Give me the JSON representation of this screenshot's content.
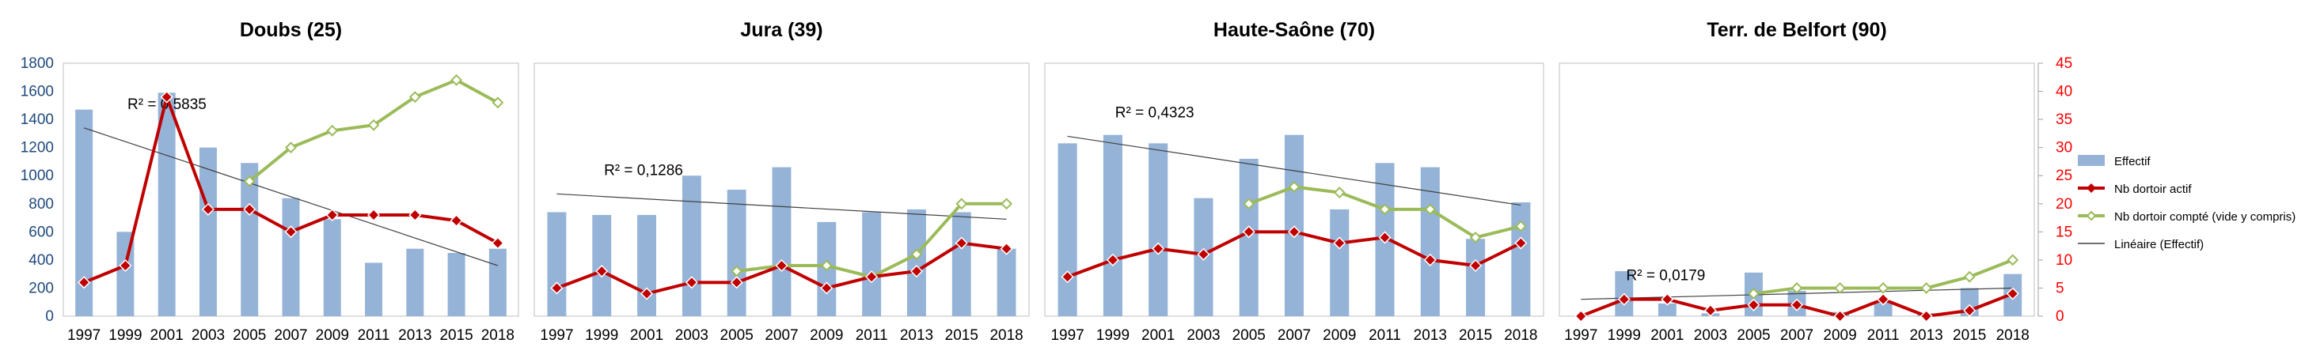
{
  "chart_data": {
    "type": "bar",
    "years": [
      "1997",
      "1999",
      "2001",
      "2003",
      "2005",
      "2007",
      "2009",
      "2011",
      "2013",
      "2015",
      "2018"
    ],
    "y_left": {
      "min": 0,
      "max": 1800,
      "step": 200
    },
    "y_right": {
      "min": 0,
      "max": 45,
      "step": 5
    },
    "grid": false,
    "legend_position": "right",
    "legend": [
      "Effectif",
      "Nb dortoir actif",
      "Nb dortoir compté (vide y compris)",
      "Linéaire (Effectif)"
    ],
    "colors": {
      "bar": "#95b3d7",
      "actif": "#c00000",
      "compte": "#9bbb59",
      "trend": "#404040",
      "left_axis_text": "#1f497d",
      "right_axis_text": "#ff0000"
    },
    "panels": [
      {
        "title": "Doubs (25)",
        "r2": "R² = 0,5835",
        "effectif": [
          1470,
          600,
          1590,
          1200,
          1090,
          840,
          690,
          380,
          480,
          450,
          480
        ],
        "actif": [
          6,
          9,
          39,
          19,
          19,
          15,
          18,
          18,
          18,
          17,
          13
        ],
        "compte": [
          null,
          null,
          null,
          null,
          24,
          30,
          33,
          34,
          39,
          42,
          38
        ],
        "trend": [
          1340,
          360
        ]
      },
      {
        "title": "Jura (39)",
        "r2": "R² = 0,1286",
        "effectif": [
          740,
          720,
          720,
          1000,
          900,
          1060,
          670,
          740,
          760,
          740,
          480
        ],
        "actif": [
          5,
          8,
          4,
          6,
          6,
          9,
          5,
          7,
          8,
          13,
          12
        ],
        "compte": [
          null,
          null,
          null,
          null,
          8,
          9,
          9,
          7,
          11,
          20,
          20
        ],
        "trend": [
          870,
          690
        ]
      },
      {
        "title": "Haute-Saône (70)",
        "r2": "R² = 0,4323",
        "effectif": [
          1230,
          1290,
          1230,
          840,
          1120,
          1290,
          760,
          1090,
          1060,
          550,
          810
        ],
        "actif": [
          7,
          10,
          12,
          11,
          15,
          15,
          13,
          14,
          10,
          9,
          13
        ],
        "compte": [
          null,
          null,
          null,
          null,
          20,
          23,
          22,
          19,
          19,
          14,
          16
        ],
        "trend": [
          1280,
          790
        ]
      },
      {
        "title": "Terr. de Belfort (90)",
        "r2": "R² = 0,0179",
        "effectif": [
          0,
          320,
          90,
          20,
          310,
          180,
          30,
          100,
          20,
          200,
          300
        ],
        "actif": [
          0,
          3,
          3,
          1,
          2,
          2,
          0,
          3,
          0,
          1,
          4
        ],
        "compte": [
          null,
          null,
          null,
          null,
          4,
          5,
          5,
          5,
          5,
          7,
          10
        ],
        "trend": [
          120,
          200
        ]
      }
    ]
  }
}
